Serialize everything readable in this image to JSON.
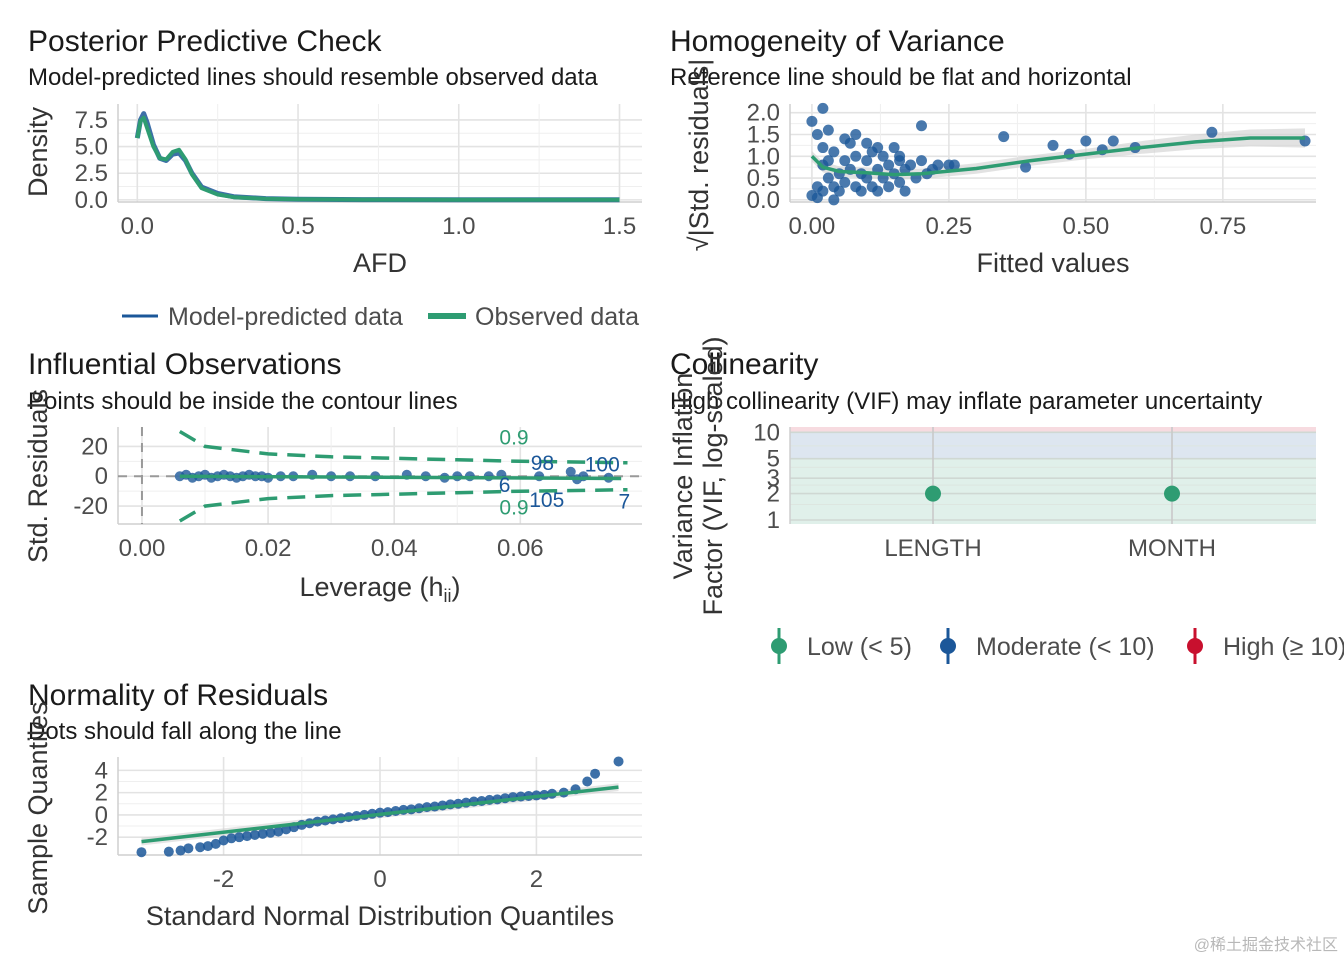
{
  "colors": {
    "blue": "#1b5799",
    "green": "#2e9c72",
    "red": "#c8102e",
    "grid": "#e3e3e3",
    "ribbon": "#cfcfcf"
  },
  "watermark": "@稀土掘金技术社区",
  "legends": {
    "ppc": [
      {
        "label": "Model-predicted data",
        "color": "blue",
        "style": "line"
      },
      {
        "label": "Observed data",
        "color": "green",
        "style": "thick-line"
      }
    ],
    "vif": [
      {
        "label": "Low (< 5)",
        "color": "green"
      },
      {
        "label": "Moderate (< 10)",
        "color": "blue"
      },
      {
        "label": "High (≥ 10)",
        "color": "red"
      }
    ]
  },
  "chart_data": [
    {
      "id": "ppc",
      "type": "line",
      "title": "Posterior Predictive Check",
      "subtitle": "Model-predicted lines should resemble observed data",
      "xlabel": "AFD",
      "ylabel": "Density",
      "xlim": [
        -0.06,
        1.57
      ],
      "ylim": [
        -0.2,
        9.0
      ],
      "xticks": [
        0.0,
        0.5,
        1.0,
        1.5
      ],
      "xtick_labels": [
        "0.0",
        "0.5",
        "1.0",
        "1.5"
      ],
      "yticks": [
        0.0,
        2.5,
        5.0,
        7.5
      ],
      "ytick_labels": [
        "0.0",
        "2.5",
        "5.0",
        "7.5"
      ],
      "grid": true,
      "legend_position": "bottom",
      "series": [
        {
          "name": "Model-predicted data",
          "color": "blue",
          "x": [
            0.0,
            0.01,
            0.02,
            0.03,
            0.05,
            0.07,
            0.09,
            0.11,
            0.13,
            0.15,
            0.17,
            0.2,
            0.25,
            0.3,
            0.4,
            0.5,
            0.7,
            1.0,
            1.5
          ],
          "y": [
            5.8,
            7.5,
            8.1,
            7.3,
            5.2,
            3.9,
            3.7,
            4.3,
            4.4,
            3.7,
            2.5,
            1.2,
            0.6,
            0.3,
            0.12,
            0.06,
            0.03,
            0.02,
            0.01
          ]
        },
        {
          "name": "Observed data",
          "color": "green",
          "x": [
            0.0,
            0.01,
            0.02,
            0.03,
            0.05,
            0.07,
            0.09,
            0.11,
            0.13,
            0.15,
            0.17,
            0.2,
            0.25,
            0.3,
            0.4,
            0.5,
            0.7,
            1.0,
            1.5
          ],
          "y": [
            5.8,
            7.4,
            7.7,
            6.8,
            5.0,
            3.9,
            3.8,
            4.5,
            4.7,
            3.8,
            2.4,
            1.1,
            0.5,
            0.25,
            0.1,
            0.05,
            0.03,
            0.02,
            0.01
          ]
        }
      ]
    },
    {
      "id": "hov",
      "type": "scatter",
      "title": "Homogeneity of Variance",
      "subtitle": "Reference line should be flat and horizontal",
      "xlabel": "Fitted values",
      "ylabel": "√|Std. residuals|",
      "xlim": [
        -0.04,
        0.92
      ],
      "ylim": [
        -0.05,
        2.2
      ],
      "xticks": [
        0.0,
        0.25,
        0.5,
        0.75
      ],
      "xtick_labels": [
        "0.00",
        "0.25",
        "0.50",
        "0.75"
      ],
      "yticks": [
        0.0,
        0.5,
        1.0,
        1.5,
        2.0
      ],
      "ytick_labels": [
        "0.0",
        "0.5",
        "1.0",
        "1.5",
        "2.0"
      ],
      "grid": true,
      "points": {
        "x": [
          0.0,
          0.0,
          0.01,
          0.01,
          0.02,
          0.02,
          0.02,
          0.03,
          0.03,
          0.04,
          0.04,
          0.05,
          0.05,
          0.06,
          0.06,
          0.07,
          0.07,
          0.08,
          0.08,
          0.09,
          0.09,
          0.1,
          0.1,
          0.11,
          0.11,
          0.12,
          0.12,
          0.13,
          0.13,
          0.14,
          0.14,
          0.15,
          0.15,
          0.16,
          0.16,
          0.17,
          0.17,
          0.18,
          0.19,
          0.2,
          0.21,
          0.22,
          0.23,
          0.25,
          0.03,
          0.06,
          0.1,
          0.12,
          0.16,
          0.02,
          0.08,
          0.2,
          0.26,
          0.35,
          0.39,
          0.44,
          0.47,
          0.5,
          0.53,
          0.55,
          0.59,
          0.73,
          0.9,
          0.01,
          0.04
        ],
        "y": [
          1.8,
          0.1,
          1.5,
          0.3,
          0.8,
          0.2,
          1.2,
          0.5,
          0.9,
          0.3,
          1.1,
          0.6,
          0.2,
          0.9,
          0.4,
          1.3,
          0.7,
          0.3,
          1.0,
          0.6,
          0.2,
          0.9,
          0.5,
          1.1,
          0.3,
          0.7,
          0.2,
          1.0,
          0.5,
          0.8,
          0.3,
          0.6,
          1.2,
          0.4,
          0.9,
          0.7,
          0.2,
          0.8,
          0.5,
          0.9,
          0.6,
          0.7,
          0.8,
          0.8,
          1.6,
          1.4,
          1.3,
          1.2,
          1.0,
          2.1,
          1.5,
          1.7,
          0.8,
          1.45,
          0.75,
          1.25,
          1.05,
          1.35,
          1.15,
          1.35,
          1.2,
          1.55,
          1.35,
          0.05,
          0.0
        ]
      },
      "smooth": {
        "x": [
          0.0,
          0.02,
          0.05,
          0.1,
          0.15,
          0.2,
          0.3,
          0.4,
          0.5,
          0.6,
          0.7,
          0.8,
          0.9
        ],
        "y": [
          1.0,
          0.75,
          0.65,
          0.62,
          0.58,
          0.6,
          0.72,
          0.9,
          1.05,
          1.2,
          1.33,
          1.42,
          1.42
        ]
      }
    },
    {
      "id": "infl",
      "type": "scatter",
      "title": "Influential Observations",
      "subtitle": "Points should be inside the contour lines",
      "xlabel": "Leverage (h",
      "xlabel_sub": "ii",
      "xlabel_end": ")",
      "ylabel": "Std. Residuals",
      "xlim": [
        -0.0038,
        0.0793
      ],
      "ylim": [
        -32,
        33
      ],
      "xticks": [
        0.0,
        0.02,
        0.04,
        0.06
      ],
      "xtick_labels": [
        "0.00",
        "0.02",
        "0.04",
        "0.06"
      ],
      "yticks": [
        -20,
        0,
        20
      ],
      "ytick_labels": [
        "-20",
        "0",
        "20"
      ],
      "grid": true,
      "contour_label": "0.9",
      "contour_label_positions": [
        [
          0.059,
          26
        ],
        [
          0.059,
          -21
        ]
      ],
      "contour_upper": {
        "x": [
          0.006,
          0.01,
          0.02,
          0.03,
          0.04,
          0.05,
          0.06,
          0.07,
          0.077
        ],
        "y": [
          30,
          20,
          15,
          13,
          12,
          11,
          10,
          9.5,
          9
        ]
      },
      "contour_lower": {
        "x": [
          0.006,
          0.01,
          0.02,
          0.03,
          0.04,
          0.05,
          0.06,
          0.07,
          0.077
        ],
        "y": [
          -30,
          -20,
          -15,
          -13,
          -12,
          -11,
          -10,
          -9.5,
          -9
        ]
      },
      "points": {
        "x": [
          0.006,
          0.007,
          0.008,
          0.009,
          0.01,
          0.011,
          0.012,
          0.013,
          0.014,
          0.015,
          0.016,
          0.017,
          0.018,
          0.019,
          0.02,
          0.022,
          0.024,
          0.027,
          0.03,
          0.033,
          0.037,
          0.042,
          0.045,
          0.048,
          0.05,
          0.052,
          0.055,
          0.057,
          0.063,
          0.068,
          0.069,
          0.07,
          0.074
        ],
        "y": [
          0,
          1,
          -1,
          0,
          1,
          -1,
          0,
          1,
          0,
          -1,
          0,
          1,
          0,
          0,
          -1,
          0,
          0,
          1,
          0,
          0,
          0,
          1,
          0,
          -1,
          0,
          0,
          0,
          1,
          0,
          3,
          -2,
          0,
          -1
        ]
      },
      "line": {
        "x": [
          0.006,
          0.076
        ],
        "y": [
          0,
          -1.5
        ]
      },
      "point_labels": [
        {
          "label": "98",
          "x": 0.0635,
          "y": 9
        },
        {
          "label": "100",
          "x": 0.073,
          "y": 8
        },
        {
          "label": "6",
          "x": 0.0575,
          "y": -6
        },
        {
          "label": "105",
          "x": 0.0642,
          "y": -16
        },
        {
          "label": "7",
          "x": 0.0765,
          "y": -17
        }
      ]
    },
    {
      "id": "vif",
      "type": "scatter",
      "title": "Collinearity",
      "subtitle": "High collinearity (VIF) may inflate parameter uncertainty",
      "ylabel_lines": [
        "Variance Inflation",
        "Factor (VIF, log-scaled)"
      ],
      "log_scale": true,
      "ylim": [
        0.9,
        11.5
      ],
      "yticks": [
        1,
        2,
        3,
        5,
        10
      ],
      "ytick_labels": [
        "1",
        "2",
        "3",
        "5",
        "10"
      ],
      "categories": [
        "LENGTH",
        "MONTH"
      ],
      "values": [
        2,
        2
      ],
      "zones": [
        {
          "from": 0.9,
          "to": 5,
          "color": "green"
        },
        {
          "from": 5,
          "to": 10,
          "color": "blue"
        },
        {
          "from": 10,
          "to": 11.5,
          "color": "red"
        }
      ],
      "legend_position": "bottom"
    },
    {
      "id": "qq",
      "type": "scatter",
      "title": "Normality of Residuals",
      "subtitle": "Dots should fall along the line",
      "xlabel": "Standard Normal Distribution Quantiles",
      "ylabel": "Sample Quantiles",
      "xlim": [
        -3.35,
        3.35
      ],
      "ylim": [
        -3.6,
        5.2
      ],
      "xticks": [
        -2,
        0,
        2
      ],
      "xtick_labels": [
        "-2",
        "0",
        "2"
      ],
      "yticks": [
        -2,
        0,
        2,
        4
      ],
      "ytick_labels": [
        "-2",
        "0",
        "2",
        "4"
      ],
      "grid": true,
      "points": {
        "x": [
          -3.05,
          -2.7,
          -2.55,
          -2.45,
          -2.3,
          -2.2,
          -2.1,
          -2.0,
          -1.9,
          -1.8,
          -1.7,
          -1.6,
          -1.5,
          -1.4,
          -1.3,
          -1.2,
          -1.1,
          -1.0,
          -0.9,
          -0.8,
          -0.7,
          -0.6,
          -0.5,
          -0.4,
          -0.3,
          -0.2,
          -0.1,
          0.0,
          0.1,
          0.2,
          0.3,
          0.4,
          0.5,
          0.6,
          0.7,
          0.8,
          0.9,
          1.0,
          1.1,
          1.2,
          1.3,
          1.4,
          1.5,
          1.6,
          1.7,
          1.8,
          1.9,
          2.0,
          2.1,
          2.2,
          2.35,
          2.5,
          2.65,
          2.75,
          3.05
        ],
        "y": [
          -3.35,
          -3.3,
          -3.2,
          -3.0,
          -2.9,
          -2.8,
          -2.6,
          -2.3,
          -2.1,
          -2.0,
          -1.9,
          -1.8,
          -1.7,
          -1.6,
          -1.5,
          -1.3,
          -1.1,
          -0.9,
          -0.75,
          -0.6,
          -0.5,
          -0.4,
          -0.3,
          -0.2,
          -0.1,
          0.0,
          0.1,
          0.2,
          0.25,
          0.35,
          0.45,
          0.5,
          0.6,
          0.7,
          0.75,
          0.85,
          0.95,
          1.0,
          1.1,
          1.2,
          1.25,
          1.35,
          1.4,
          1.5,
          1.6,
          1.65,
          1.7,
          1.75,
          1.8,
          1.9,
          2.0,
          2.3,
          3.0,
          3.7,
          4.8
        ]
      },
      "line": {
        "x": [
          -3.05,
          3.05
        ],
        "y": [
          -2.4,
          2.5
        ]
      }
    }
  ]
}
